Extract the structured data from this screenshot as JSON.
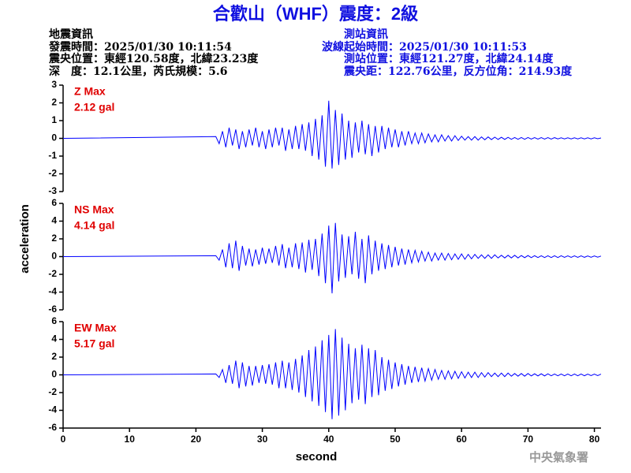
{
  "header": {
    "title": "合歡山（WHF）震度：2級",
    "quake": [
      "地震資訊",
      "發震時間：2025/01/30 10:11:54",
      "震央位置：東經120.58度，北緯23.23度",
      "深　度：12.1公里，芮氏規模：5.6"
    ],
    "station": [
      "測站資訊",
      "波線起始時間：2025/01/30 10:11:53",
      "測站位置：東經121.27度，北緯24.14度",
      "震央距：122.76公里，反方位角：214.93度"
    ]
  },
  "ylabel": "acceleration",
  "footer": "中央氣象署",
  "chart_data": [
    {
      "type": "line",
      "annotations": [
        "Z Max",
        "2.12 gal"
      ],
      "annotation_color": "#e00000",
      "color": "#0000ff",
      "xlim": [
        0,
        81
      ],
      "ylim": [
        -3,
        3
      ],
      "yticks": [
        -3,
        -2,
        -1,
        0,
        1,
        2,
        3
      ],
      "x": [
        0,
        23,
        23.5,
        24,
        24.5,
        25,
        25.5,
        26,
        26.5,
        27,
        27.5,
        28,
        28.5,
        29,
        29.5,
        30,
        30.5,
        31,
        31.5,
        32,
        32.5,
        33,
        33.5,
        34,
        34.5,
        35,
        35.5,
        36,
        36.5,
        37,
        37.5,
        38,
        38.5,
        39,
        39.5,
        40,
        40.5,
        41,
        41.5,
        42,
        42.5,
        43,
        43.5,
        44,
        44.5,
        45,
        45.5,
        46,
        46.5,
        47,
        47.5,
        48,
        48.5,
        49,
        49.5,
        50,
        50.5,
        51,
        51.5,
        52,
        52.5,
        53,
        53.5,
        54,
        54.5,
        55,
        55.5,
        56,
        56.5,
        57,
        57.5,
        58,
        58.5,
        59,
        59.5,
        60,
        60.5,
        61,
        61.5,
        62,
        62.5,
        63,
        63.5,
        64,
        64.5,
        65,
        65.5,
        66,
        66.5,
        67,
        67.5,
        68,
        68.5,
        69,
        69.5,
        70,
        70.5,
        71,
        71.5,
        72,
        72.5,
        73,
        73.5,
        74,
        74.5,
        75,
        75.5,
        76,
        76.5,
        77,
        77.5,
        78,
        78.5,
        79,
        79.5,
        80,
        80.5,
        81
      ],
      "values": [
        0,
        0.1,
        -0.3,
        0.4,
        -0.5,
        0.6,
        -0.4,
        0.5,
        -0.6,
        0.4,
        -0.5,
        0.5,
        -0.4,
        0.6,
        -0.5,
        0.4,
        -0.6,
        0.5,
        -0.5,
        0.6,
        -0.4,
        0.6,
        -0.7,
        0.5,
        -0.6,
        0.7,
        -0.6,
        0.8,
        -0.7,
        0.9,
        -1.0,
        1.1,
        -1.2,
        1.3,
        -1.6,
        2.12,
        -1.7,
        1.6,
        -1.5,
        1.4,
        -1.2,
        1.0,
        -1.1,
        0.9,
        -0.8,
        1.0,
        -0.9,
        0.8,
        -1.0,
        0.7,
        -0.8,
        0.7,
        -0.6,
        0.6,
        -0.5,
        0.5,
        -0.5,
        0.4,
        -0.4,
        0.4,
        -0.3,
        0.3,
        -0.3,
        0.3,
        -0.25,
        0.25,
        -0.2,
        0.2,
        -0.2,
        0.2,
        -0.15,
        0.15,
        -0.15,
        0.15,
        -0.12,
        0.12,
        -0.1,
        0.1,
        -0.1,
        0.1,
        -0.1,
        0.08,
        -0.08,
        0.08,
        -0.07,
        0.07,
        -0.06,
        0.06,
        -0.06,
        0.06,
        -0.05,
        0.05,
        -0.05,
        0.05,
        -0.05,
        0.05,
        -0.04,
        0.04,
        -0.04,
        0.04,
        -0.04,
        0.04,
        -0.04,
        0.04,
        -0.03,
        0.03,
        -0.03,
        0.03,
        -0.03,
        0.03,
        -0.03,
        0.03,
        -0.03,
        0.03,
        -0.03,
        0.03,
        -0.02,
        0.02
      ]
    },
    {
      "type": "line",
      "annotations": [
        "NS Max",
        "4.14 gal"
      ],
      "annotation_color": "#e00000",
      "color": "#0000ff",
      "xlim": [
        0,
        81
      ],
      "ylim": [
        -6,
        6
      ],
      "yticks": [
        -6,
        -4,
        -2,
        0,
        2,
        4,
        6
      ],
      "x": [
        0,
        23,
        23.5,
        24,
        24.5,
        25,
        25.5,
        26,
        26.5,
        27,
        27.5,
        28,
        28.5,
        29,
        29.5,
        30,
        30.5,
        31,
        31.5,
        32,
        32.5,
        33,
        33.5,
        34,
        34.5,
        35,
        35.5,
        36,
        36.5,
        37,
        37.5,
        38,
        38.5,
        39,
        39.5,
        40,
        40.5,
        41,
        41.5,
        42,
        42.5,
        43,
        43.5,
        44,
        44.5,
        45,
        45.5,
        46,
        46.5,
        47,
        47.5,
        48,
        48.5,
        49,
        49.5,
        50,
        50.5,
        51,
        51.5,
        52,
        52.5,
        53,
        53.5,
        54,
        54.5,
        55,
        55.5,
        56,
        56.5,
        57,
        57.5,
        58,
        58.5,
        59,
        59.5,
        60,
        60.5,
        61,
        61.5,
        62,
        62.5,
        63,
        63.5,
        64,
        64.5,
        65,
        65.5,
        66,
        66.5,
        67,
        67.5,
        68,
        68.5,
        69,
        69.5,
        70,
        70.5,
        71,
        71.5,
        72,
        72.5,
        73,
        73.5,
        74,
        74.5,
        75,
        75.5,
        76,
        76.5,
        77,
        77.5,
        78,
        78.5,
        79,
        79.5,
        80,
        80.5,
        81
      ],
      "values": [
        0,
        0.1,
        -0.4,
        0.8,
        -1.2,
        1.5,
        -1.3,
        1.8,
        -1.6,
        1.2,
        -1.0,
        0.9,
        -1.1,
        0.8,
        -0.9,
        1.0,
        -0.8,
        0.9,
        -0.7,
        1.2,
        -1.0,
        1.4,
        -1.3,
        1.0,
        -1.2,
        1.5,
        -1.4,
        1.6,
        -1.8,
        1.9,
        -1.5,
        2.0,
        -2.2,
        2.6,
        -3.0,
        3.5,
        -4.14,
        3.8,
        -2.8,
        2.5,
        -2.4,
        2.3,
        -2.0,
        2.8,
        -2.5,
        2.0,
        -3.0,
        2.4,
        -2.0,
        1.8,
        -1.6,
        1.5,
        -1.4,
        1.3,
        -1.2,
        1.1,
        -1.0,
        0.9,
        -0.9,
        0.8,
        -0.7,
        0.7,
        -0.6,
        0.6,
        -0.5,
        0.5,
        -0.5,
        0.4,
        -0.4,
        0.4,
        -0.4,
        0.35,
        -0.35,
        0.3,
        -0.3,
        0.3,
        -0.3,
        0.25,
        -0.25,
        0.25,
        -0.2,
        0.2,
        -0.2,
        0.2,
        -0.2,
        0.2,
        -0.15,
        0.15,
        -0.15,
        0.15,
        -0.15,
        0.15,
        -0.15,
        0.12,
        -0.12,
        0.12,
        -0.12,
        0.1,
        -0.1,
        0.1,
        -0.1,
        0.1,
        -0.1,
        0.1,
        -0.1,
        0.1,
        -0.08,
        0.08,
        -0.08,
        0.08,
        -0.08,
        0.08,
        -0.08,
        0.07,
        -0.07,
        0.07,
        -0.06,
        0.06
      ]
    },
    {
      "type": "line",
      "annotations": [
        "EW Max",
        "5.17 gal"
      ],
      "annotation_color": "#e00000",
      "color": "#0000ff",
      "xlim": [
        0,
        81
      ],
      "ylim": [
        -6,
        6
      ],
      "yticks": [
        -6,
        -4,
        -2,
        0,
        2,
        4,
        6
      ],
      "xticks": [
        0,
        10,
        20,
        30,
        40,
        50,
        60,
        70,
        80
      ],
      "xlabel": "second",
      "x": [
        0,
        23,
        23.5,
        24,
        24.5,
        25,
        25.5,
        26,
        26.5,
        27,
        27.5,
        28,
        28.5,
        29,
        29.5,
        30,
        30.5,
        31,
        31.5,
        32,
        32.5,
        33,
        33.5,
        34,
        34.5,
        35,
        35.5,
        36,
        36.5,
        37,
        37.5,
        38,
        38.5,
        39,
        39.5,
        40,
        40.5,
        41,
        41.5,
        42,
        42.5,
        43,
        43.5,
        44,
        44.5,
        45,
        45.5,
        46,
        46.5,
        47,
        47.5,
        48,
        48.5,
        49,
        49.5,
        50,
        50.5,
        51,
        51.5,
        52,
        52.5,
        53,
        53.5,
        54,
        54.5,
        55,
        55.5,
        56,
        56.5,
        57,
        57.5,
        58,
        58.5,
        59,
        59.5,
        60,
        60.5,
        61,
        61.5,
        62,
        62.5,
        63,
        63.5,
        64,
        64.5,
        65,
        65.5,
        66,
        66.5,
        67,
        67.5,
        68,
        68.5,
        69,
        69.5,
        70,
        70.5,
        71,
        71.5,
        72,
        72.5,
        73,
        73.5,
        74,
        74.5,
        75,
        75.5,
        76,
        76.5,
        77,
        77.5,
        78,
        78.5,
        79,
        79.5,
        80,
        80.5,
        81
      ],
      "values": [
        0,
        0.1,
        -0.3,
        0.6,
        -0.9,
        1.1,
        -1.0,
        1.6,
        -1.5,
        1.4,
        -1.3,
        1.0,
        -1.2,
        1.0,
        -0.9,
        1.1,
        -1.0,
        1.2,
        -1.1,
        1.4,
        -1.5,
        1.6,
        -1.5,
        1.4,
        -1.7,
        1.8,
        -2.0,
        2.2,
        -2.5,
        2.8,
        -3.0,
        3.2,
        -3.5,
        3.9,
        -4.2,
        4.5,
        -5.0,
        5.17,
        -4.6,
        4.2,
        -4.0,
        3.5,
        -3.2,
        3.0,
        -2.8,
        3.4,
        -3.3,
        3.0,
        -2.5,
        2.8,
        -2.3,
        2.0,
        -1.8,
        1.7,
        -1.6,
        1.4,
        -1.3,
        1.2,
        -1.1,
        1.0,
        -0.9,
        0.9,
        -0.8,
        0.8,
        -0.7,
        0.7,
        -0.6,
        0.6,
        -0.5,
        0.5,
        -0.5,
        0.45,
        -0.45,
        0.4,
        -0.4,
        0.35,
        -0.35,
        0.3,
        -0.3,
        0.3,
        -0.3,
        0.25,
        -0.25,
        0.25,
        -0.2,
        0.2,
        -0.2,
        0.2,
        -0.2,
        0.2,
        -0.15,
        0.15,
        -0.15,
        0.15,
        -0.15,
        0.15,
        -0.12,
        0.12,
        -0.12,
        0.12,
        -0.12,
        0.12,
        -0.1,
        0.1,
        -0.1,
        0.1,
        -0.1,
        0.1,
        -0.1,
        0.1,
        -0.1,
        0.1,
        -0.1,
        0.08,
        -0.08,
        0.08,
        -0.08,
        0.08
      ]
    }
  ]
}
